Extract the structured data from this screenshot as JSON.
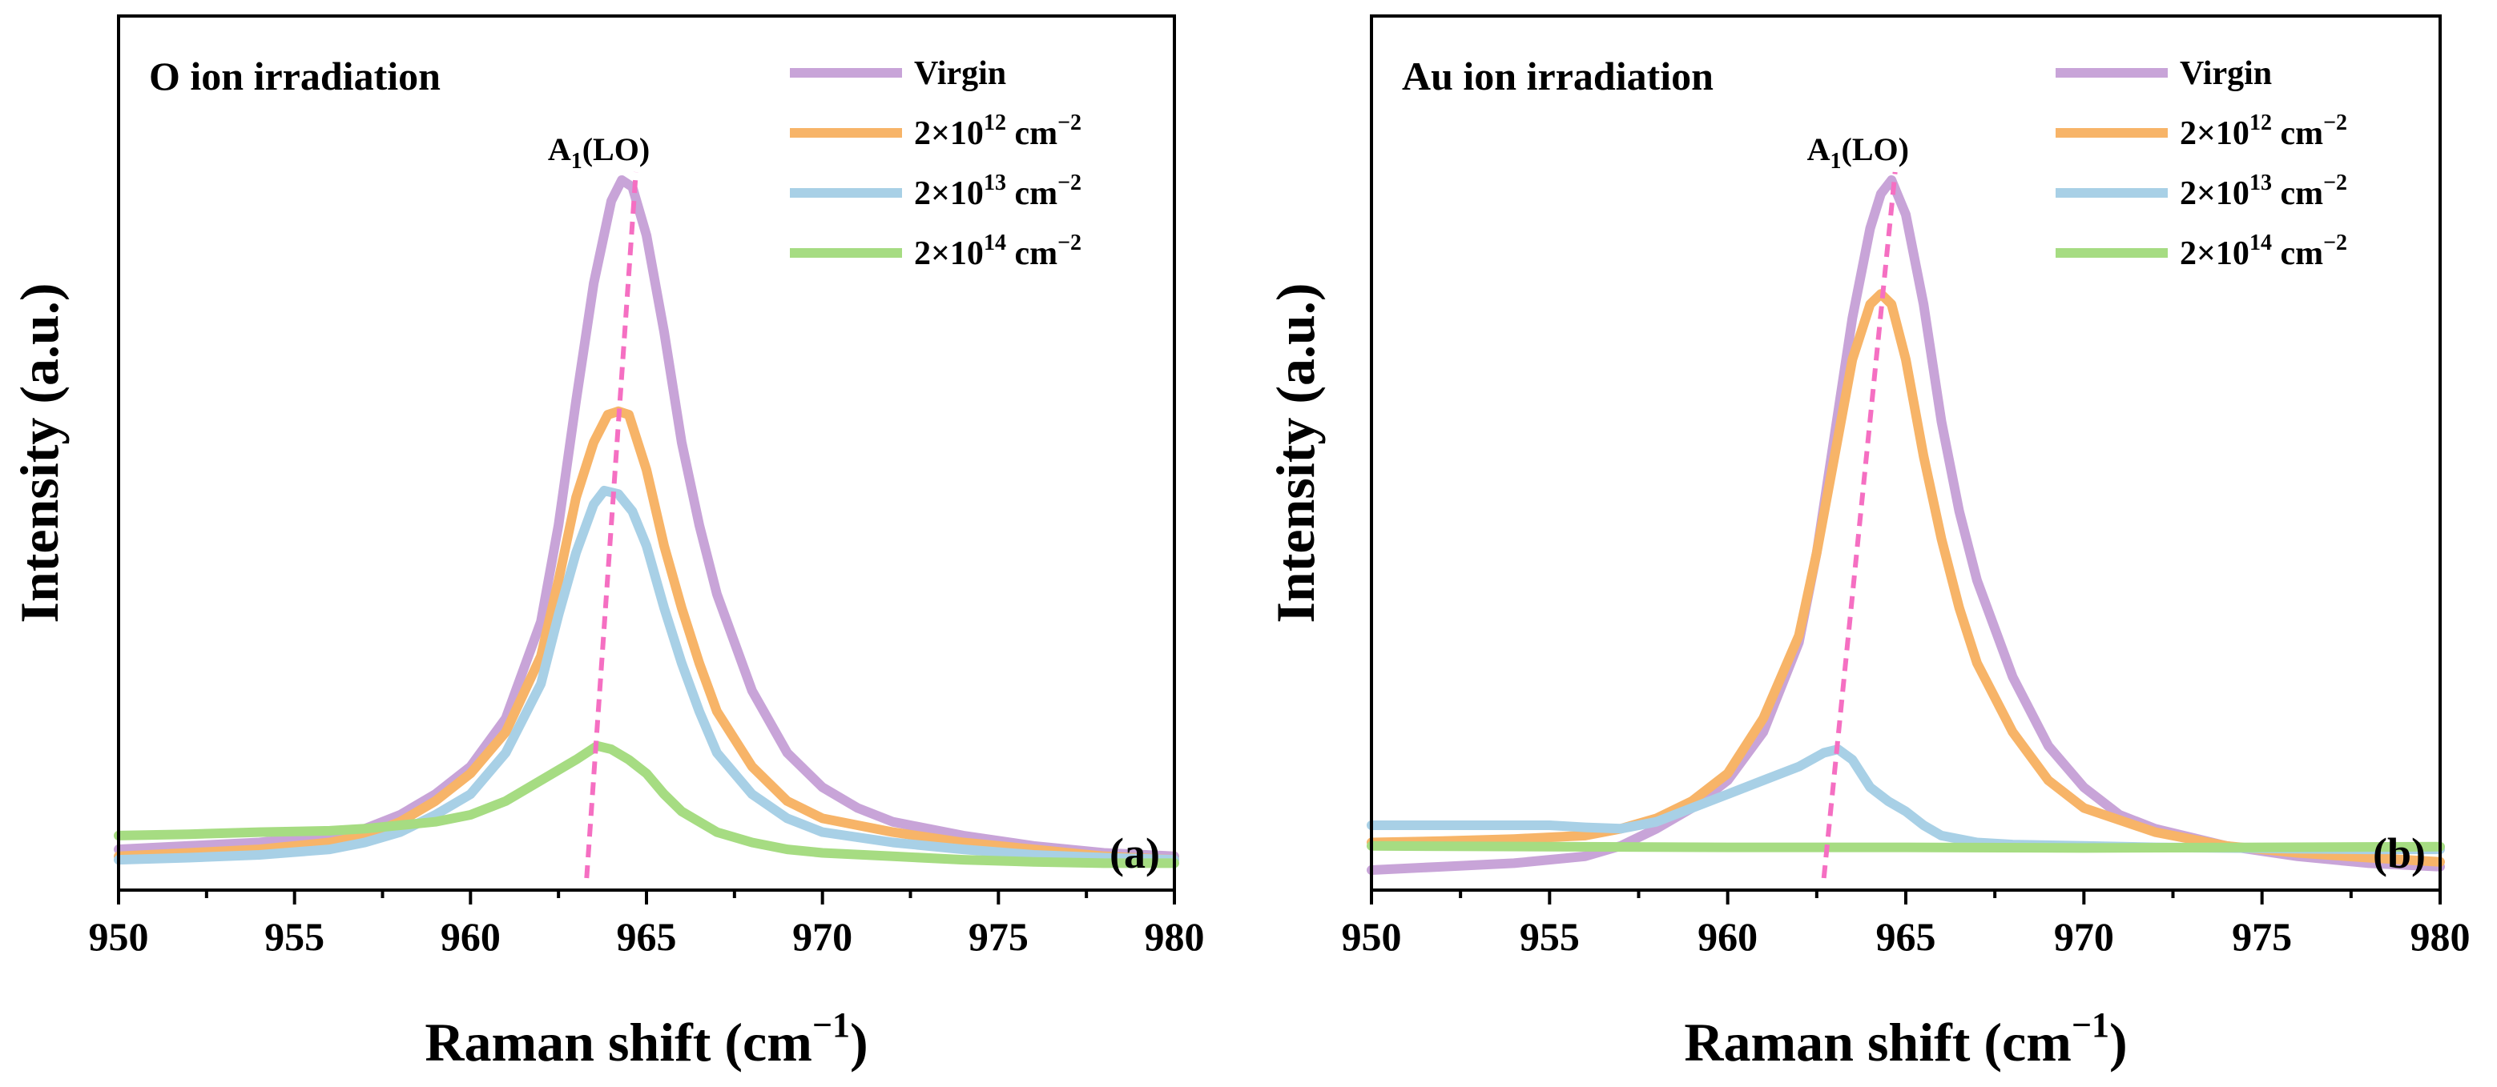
{
  "chart_data": [
    {
      "type": "line",
      "panel_label": "(a)",
      "title": "O ion irradiation",
      "xlabel_main": "Raman shift (cm",
      "xlabel_sup": "−1",
      "xlabel_tail": ")",
      "ylabel": "Intensity (a.u.)",
      "xlim": [
        950,
        980
      ],
      "ylim": [
        0,
        1.0
      ],
      "xticks": [
        950,
        955,
        960,
        965,
        970,
        975,
        980
      ],
      "annotation": {
        "base": "A",
        "sub": "1",
        "tail": "(LO)"
      },
      "guide_line": {
        "x": [
          963.3,
          964.7
        ],
        "y": [
          0.0,
          1.0
        ]
      },
      "series": [
        {
          "name": "Virgin",
          "label_base": "Virgin",
          "label_sup": "",
          "label_tail": "",
          "color": "#c8a4d8",
          "x": [
            950,
            952,
            954,
            956,
            957,
            958,
            959,
            960,
            961,
            962,
            962.5,
            963,
            963.5,
            964,
            964.3,
            964.6,
            965,
            965.5,
            966,
            966.5,
            967,
            968,
            969,
            970,
            971,
            972,
            974,
            976,
            978,
            980
          ],
          "y": [
            0.03,
            0.035,
            0.04,
            0.05,
            0.06,
            0.08,
            0.11,
            0.15,
            0.22,
            0.36,
            0.5,
            0.68,
            0.85,
            0.97,
            1.0,
            0.99,
            0.92,
            0.78,
            0.62,
            0.5,
            0.4,
            0.26,
            0.17,
            0.12,
            0.09,
            0.07,
            0.05,
            0.035,
            0.025,
            0.02
          ]
        },
        {
          "name": "2×10^12 cm^-2",
          "label_base": "2×10",
          "label_sup": "12",
          "label_tail": " cm",
          "color": "#f7b468",
          "x": [
            950,
            952,
            954,
            956,
            957,
            958,
            959,
            960,
            961,
            962,
            962.5,
            963,
            963.5,
            963.9,
            964.2,
            964.5,
            965,
            965.5,
            966,
            966.5,
            967,
            968,
            969,
            970,
            972,
            974,
            976,
            978,
            980
          ],
          "y": [
            0.02,
            0.025,
            0.03,
            0.04,
            0.05,
            0.07,
            0.1,
            0.14,
            0.2,
            0.31,
            0.42,
            0.54,
            0.62,
            0.66,
            0.665,
            0.66,
            0.58,
            0.47,
            0.38,
            0.3,
            0.23,
            0.15,
            0.1,
            0.075,
            0.055,
            0.04,
            0.03,
            0.02,
            0.015
          ]
        },
        {
          "name": "2×10^13 cm^-2",
          "label_base": "2×10",
          "label_sup": "13",
          "label_tail": " cm",
          "color": "#a8d0e6",
          "x": [
            950,
            952,
            954,
            956,
            957,
            958,
            959,
            960,
            961,
            962,
            962.5,
            963,
            963.5,
            963.8,
            964.2,
            964.6,
            965,
            965.5,
            966,
            966.5,
            967,
            968,
            969,
            970,
            972,
            974,
            976,
            978,
            980
          ],
          "y": [
            0.015,
            0.018,
            0.022,
            0.03,
            0.04,
            0.055,
            0.08,
            0.11,
            0.17,
            0.27,
            0.37,
            0.46,
            0.53,
            0.55,
            0.545,
            0.52,
            0.47,
            0.38,
            0.3,
            0.23,
            0.17,
            0.11,
            0.075,
            0.055,
            0.04,
            0.03,
            0.022,
            0.018,
            0.015
          ]
        },
        {
          "name": "2×10^14 cm^-2",
          "label_base": "2×10",
          "label_sup": "14",
          "label_tail": " cm",
          "color": "#a6dc82",
          "x": [
            950,
            952,
            954,
            956,
            957,
            958,
            959,
            960,
            961,
            962,
            963,
            963.6,
            964,
            964.5,
            965,
            965.5,
            966,
            967,
            968,
            969,
            970,
            972,
            974,
            976,
            978,
            980
          ],
          "y": [
            0.05,
            0.052,
            0.055,
            0.057,
            0.06,
            0.065,
            0.07,
            0.08,
            0.1,
            0.13,
            0.16,
            0.18,
            0.175,
            0.16,
            0.14,
            0.11,
            0.085,
            0.055,
            0.04,
            0.03,
            0.025,
            0.02,
            0.015,
            0.012,
            0.01,
            0.01
          ]
        }
      ]
    },
    {
      "type": "line",
      "panel_label": "(b)",
      "title": "Au ion irradiation",
      "xlabel_main": "Raman shift (cm",
      "xlabel_sup": "−1",
      "xlabel_tail": ")",
      "ylabel": "Intensity (a.u.)",
      "xlim": [
        950,
        980
      ],
      "ylim": [
        0,
        1.0
      ],
      "xticks": [
        950,
        955,
        960,
        965,
        970,
        975,
        980
      ],
      "annotation": {
        "base": "A",
        "sub": "1",
        "tail": "(LO)"
      },
      "guide_line": {
        "x": [
          962.7,
          964.7
        ],
        "y": [
          0.0,
          1.0
        ]
      },
      "series": [
        {
          "name": "Virgin",
          "label_base": "Virgin",
          "label_sup": "",
          "label_tail": "",
          "color": "#c8a4d8",
          "x": [
            950,
            952,
            954,
            956,
            957,
            958,
            959,
            960,
            961,
            962,
            962.5,
            963,
            963.5,
            964,
            964.3,
            964.6,
            965,
            965.5,
            966,
            966.5,
            967,
            968,
            969,
            970,
            971,
            972,
            974,
            976,
            978,
            980
          ],
          "y": [
            0.0,
            0.005,
            0.01,
            0.02,
            0.035,
            0.06,
            0.09,
            0.13,
            0.2,
            0.33,
            0.46,
            0.63,
            0.8,
            0.93,
            0.98,
            1.0,
            0.95,
            0.82,
            0.65,
            0.52,
            0.42,
            0.28,
            0.18,
            0.12,
            0.08,
            0.06,
            0.035,
            0.02,
            0.01,
            0.005
          ]
        },
        {
          "name": "2×10^12 cm^-2",
          "label_base": "2×10",
          "label_sup": "12",
          "label_tail": " cm",
          "color": "#f7b468",
          "x": [
            950,
            952,
            954,
            956,
            957,
            958,
            959,
            960,
            961,
            962,
            962.5,
            963,
            963.5,
            964,
            964.3,
            964.6,
            965,
            965.5,
            966,
            966.5,
            967,
            968,
            969,
            970,
            972,
            974,
            976,
            978,
            980
          ],
          "y": [
            0.04,
            0.042,
            0.045,
            0.05,
            0.06,
            0.075,
            0.1,
            0.14,
            0.22,
            0.34,
            0.46,
            0.6,
            0.74,
            0.82,
            0.835,
            0.82,
            0.74,
            0.6,
            0.48,
            0.38,
            0.3,
            0.2,
            0.13,
            0.09,
            0.055,
            0.035,
            0.025,
            0.018,
            0.012
          ]
        },
        {
          "name": "2×10^13 cm^-2",
          "label_base": "2×10",
          "label_sup": "13",
          "label_tail": " cm",
          "color": "#a8d0e6",
          "x": [
            950,
            952,
            954,
            955,
            956,
            957,
            958,
            959,
            960,
            961,
            962,
            962.7,
            963.1,
            963.5,
            964,
            964.5,
            965,
            965.5,
            966,
            967,
            968,
            970,
            972,
            974,
            976,
            978,
            980
          ],
          "y": [
            0.065,
            0.065,
            0.065,
            0.065,
            0.062,
            0.06,
            0.07,
            0.09,
            0.11,
            0.13,
            0.15,
            0.17,
            0.175,
            0.16,
            0.12,
            0.1,
            0.085,
            0.065,
            0.05,
            0.04,
            0.037,
            0.035,
            0.033,
            0.032,
            0.031,
            0.03,
            0.03
          ]
        },
        {
          "name": "2×10^14 cm^-2",
          "label_base": "2×10",
          "label_sup": "14",
          "label_tail": " cm",
          "color": "#a6dc82",
          "x": [
            950,
            955,
            960,
            965,
            970,
            975,
            980
          ],
          "y": [
            0.035,
            0.034,
            0.033,
            0.033,
            0.032,
            0.033,
            0.034
          ]
        }
      ]
    }
  ]
}
